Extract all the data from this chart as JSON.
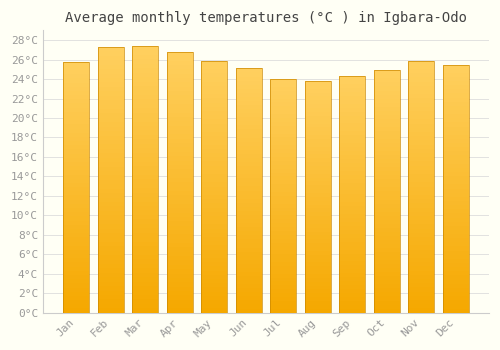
{
  "title": "Average monthly temperatures (°C ) in Igbara-Odo",
  "months": [
    "Jan",
    "Feb",
    "Mar",
    "Apr",
    "May",
    "Jun",
    "Jul",
    "Aug",
    "Sep",
    "Oct",
    "Nov",
    "Dec"
  ],
  "values": [
    25.8,
    27.3,
    27.4,
    26.8,
    25.9,
    25.1,
    24.0,
    23.8,
    24.3,
    24.9,
    25.9,
    25.5
  ],
  "bar_color_bottom": "#F5A800",
  "bar_color_top": "#FFD060",
  "ylim": [
    0,
    29
  ],
  "yticks": [
    0,
    2,
    4,
    6,
    8,
    10,
    12,
    14,
    16,
    18,
    20,
    22,
    24,
    26,
    28
  ],
  "ytick_labels": [
    "0°C",
    "2°C",
    "4°C",
    "6°C",
    "8°C",
    "10°C",
    "12°C",
    "14°C",
    "16°C",
    "18°C",
    "20°C",
    "22°C",
    "24°C",
    "26°C",
    "28°C"
  ],
  "bg_color": "#fffff5",
  "grid_color": "#dddddd",
  "bar_edge_color": "#CC8800",
  "title_fontsize": 10,
  "tick_fontsize": 8,
  "tick_color": "#999999",
  "font_family": "monospace",
  "bar_width": 0.75,
  "n_grad": 60
}
